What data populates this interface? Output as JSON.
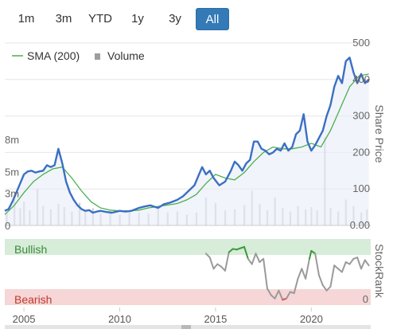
{
  "range_selector": {
    "buttons": [
      {
        "label": "1m",
        "active": false
      },
      {
        "label": "3m",
        "active": false
      },
      {
        "label": "YTD",
        "active": false
      },
      {
        "label": "1y",
        "active": false
      },
      {
        "label": "3y",
        "active": false
      },
      {
        "label": "All",
        "active": true
      }
    ]
  },
  "colors": {
    "price_line": "#3b6fc4",
    "sma_line": "#4caf50",
    "volume_bar": "#cfcfd6",
    "bullish_band": "#d7ecd9",
    "bearish_band": "#f6d6d6",
    "stockrank_grey": "#9a9a9a",
    "stockrank_green": "#3a9a3a",
    "stockrank_red": "#d9534f",
    "active_button": "#337ab7"
  },
  "chart_data": {
    "type": "line",
    "legend": [
      {
        "name": "SMA (200)",
        "kind": "line"
      },
      {
        "name": "Volume",
        "kind": "bar"
      }
    ],
    "price_axis": {
      "title": "Share Price",
      "ticks": [
        "500",
        "400",
        "300",
        "200",
        "100",
        "0.00"
      ],
      "range": [
        0,
        500
      ]
    },
    "volume_axis": {
      "ticks": [
        "8m",
        "5m",
        "3m",
        "0"
      ],
      "range": [
        0,
        10
      ]
    },
    "x_axis": {
      "ticks": [
        "2005",
        "2010",
        "2015",
        "2020"
      ],
      "range": [
        2004.0,
        2023.1
      ]
    },
    "price_series": {
      "name": "Share Price",
      "x": [
        2004.0,
        2004.2,
        2004.4,
        2004.6,
        2004.8,
        2005.0,
        2005.2,
        2005.4,
        2005.6,
        2005.8,
        2006.0,
        2006.2,
        2006.4,
        2006.6,
        2006.8,
        2007.0,
        2007.2,
        2007.4,
        2007.6,
        2007.8,
        2008.0,
        2008.2,
        2008.4,
        2008.6,
        2008.8,
        2009.0,
        2009.3,
        2009.6,
        2010.0,
        2010.3,
        2010.6,
        2011.0,
        2011.3,
        2011.6,
        2012.0,
        2012.3,
        2012.6,
        2013.0,
        2013.3,
        2013.6,
        2013.9,
        2014.1,
        2014.3,
        2014.5,
        2014.7,
        2014.9,
        2015.2,
        2015.5,
        2015.8,
        2016.0,
        2016.2,
        2016.4,
        2016.6,
        2016.8,
        2017.0,
        2017.2,
        2017.4,
        2017.6,
        2017.8,
        2018.0,
        2018.2,
        2018.4,
        2018.6,
        2018.8,
        2019.0,
        2019.2,
        2019.4,
        2019.6,
        2019.8,
        2020.0,
        2020.2,
        2020.4,
        2020.6,
        2020.8,
        2021.0,
        2021.2,
        2021.4,
        2021.6,
        2021.8,
        2022.0,
        2022.2,
        2022.4,
        2022.6,
        2022.8,
        2023.0
      ],
      "values": [
        40,
        45,
        65,
        90,
        115,
        140,
        148,
        150,
        145,
        148,
        150,
        165,
        160,
        165,
        210,
        170,
        120,
        90,
        70,
        55,
        45,
        40,
        42,
        35,
        38,
        40,
        37,
        35,
        40,
        38,
        40,
        48,
        52,
        55,
        48,
        58,
        62,
        70,
        80,
        95,
        110,
        135,
        160,
        140,
        150,
        130,
        110,
        120,
        150,
        175,
        165,
        150,
        170,
        180,
        230,
        230,
        210,
        205,
        195,
        200,
        210,
        205,
        225,
        205,
        215,
        250,
        260,
        305,
        230,
        205,
        220,
        240,
        260,
        300,
        330,
        380,
        410,
        390,
        450,
        460,
        420,
        390,
        415,
        390,
        400
      ]
    },
    "sma_series": {
      "name": "SMA (200)",
      "x": [
        2004.0,
        2004.5,
        2005.0,
        2005.5,
        2006.0,
        2006.5,
        2007.0,
        2007.5,
        2008.0,
        2008.5,
        2009.0,
        2009.5,
        2010.0,
        2010.5,
        2011.0,
        2011.5,
        2012.0,
        2012.5,
        2013.0,
        2013.5,
        2014.0,
        2014.5,
        2015.0,
        2015.5,
        2016.0,
        2016.5,
        2017.0,
        2017.5,
        2018.0,
        2018.5,
        2019.0,
        2019.5,
        2020.0,
        2020.5,
        2021.0,
        2021.5,
        2022.0,
        2022.5,
        2023.0
      ],
      "values": [
        30,
        55,
        90,
        120,
        140,
        155,
        160,
        130,
        95,
        65,
        48,
        42,
        40,
        40,
        42,
        48,
        52,
        56,
        60,
        70,
        85,
        115,
        140,
        130,
        125,
        145,
        175,
        200,
        215,
        210,
        210,
        215,
        225,
        215,
        260,
        320,
        380,
        410,
        415
      ]
    },
    "volume_series": {
      "name": "Volume",
      "unit": "m",
      "x": [
        2004.1,
        2004.5,
        2004.8,
        2005.0,
        2005.3,
        2005.7,
        2006.0,
        2006.4,
        2006.8,
        2007.1,
        2007.5,
        2007.9,
        2008.2,
        2008.6,
        2009.0,
        2009.5,
        2010.0,
        2010.5,
        2011.0,
        2011.5,
        2012.0,
        2012.5,
        2013.0,
        2013.5,
        2014.0,
        2014.5,
        2015.0,
        2015.5,
        2016.0,
        2016.5,
        2016.9,
        2017.3,
        2017.7,
        2018.1,
        2018.5,
        2018.9,
        2019.3,
        2019.7,
        2020.0,
        2020.3,
        2020.7,
        2021.0,
        2021.4,
        2021.8,
        2022.2,
        2022.6,
        2022.9
      ],
      "values": [
        1.2,
        2.8,
        1.6,
        2.2,
        1.4,
        3.4,
        1.8,
        1.5,
        2.0,
        1.7,
        1.3,
        2.1,
        1.4,
        1.6,
        1.1,
        1.3,
        1.0,
        1.4,
        1.2,
        1.1,
        1.5,
        1.2,
        1.3,
        1.0,
        1.2,
        2.6,
        2.1,
        1.4,
        1.5,
        1.9,
        3.2,
        2.0,
        1.4,
        2.6,
        1.6,
        1.3,
        1.8,
        1.5,
        1.7,
        1.4,
        8.2,
        1.6,
        1.3,
        2.4,
        1.8,
        1.2,
        1.5
      ]
    },
    "stockrank": {
      "title": "StockRank",
      "bands": [
        "Bullish",
        "Bearish"
      ],
      "axis_ticks": [
        "0"
      ],
      "range": [
        0,
        100
      ],
      "x": [
        2014.5,
        2014.7,
        2014.9,
        2015.1,
        2015.3,
        2015.5,
        2015.7,
        2015.9,
        2016.1,
        2016.3,
        2016.5,
        2016.7,
        2016.9,
        2017.1,
        2017.3,
        2017.5,
        2017.7,
        2017.9,
        2018.1,
        2018.3,
        2018.5,
        2018.7,
        2018.9,
        2019.1,
        2019.3,
        2019.5,
        2019.7,
        2019.9,
        2020.0,
        2020.2,
        2020.4,
        2020.6,
        2020.8,
        2021.0,
        2021.2,
        2021.4,
        2021.6,
        2021.8,
        2022.0,
        2022.2,
        2022.4,
        2022.6,
        2022.8,
        2023.0
      ],
      "values": [
        78,
        72,
        55,
        62,
        58,
        52,
        80,
        85,
        84,
        86,
        88,
        70,
        62,
        78,
        65,
        70,
        25,
        15,
        10,
        22,
        8,
        10,
        20,
        18,
        40,
        55,
        40,
        70,
        82,
        78,
        45,
        30,
        22,
        28,
        60,
        55,
        50,
        65,
        62,
        70,
        72,
        55,
        68,
        60
      ]
    }
  }
}
